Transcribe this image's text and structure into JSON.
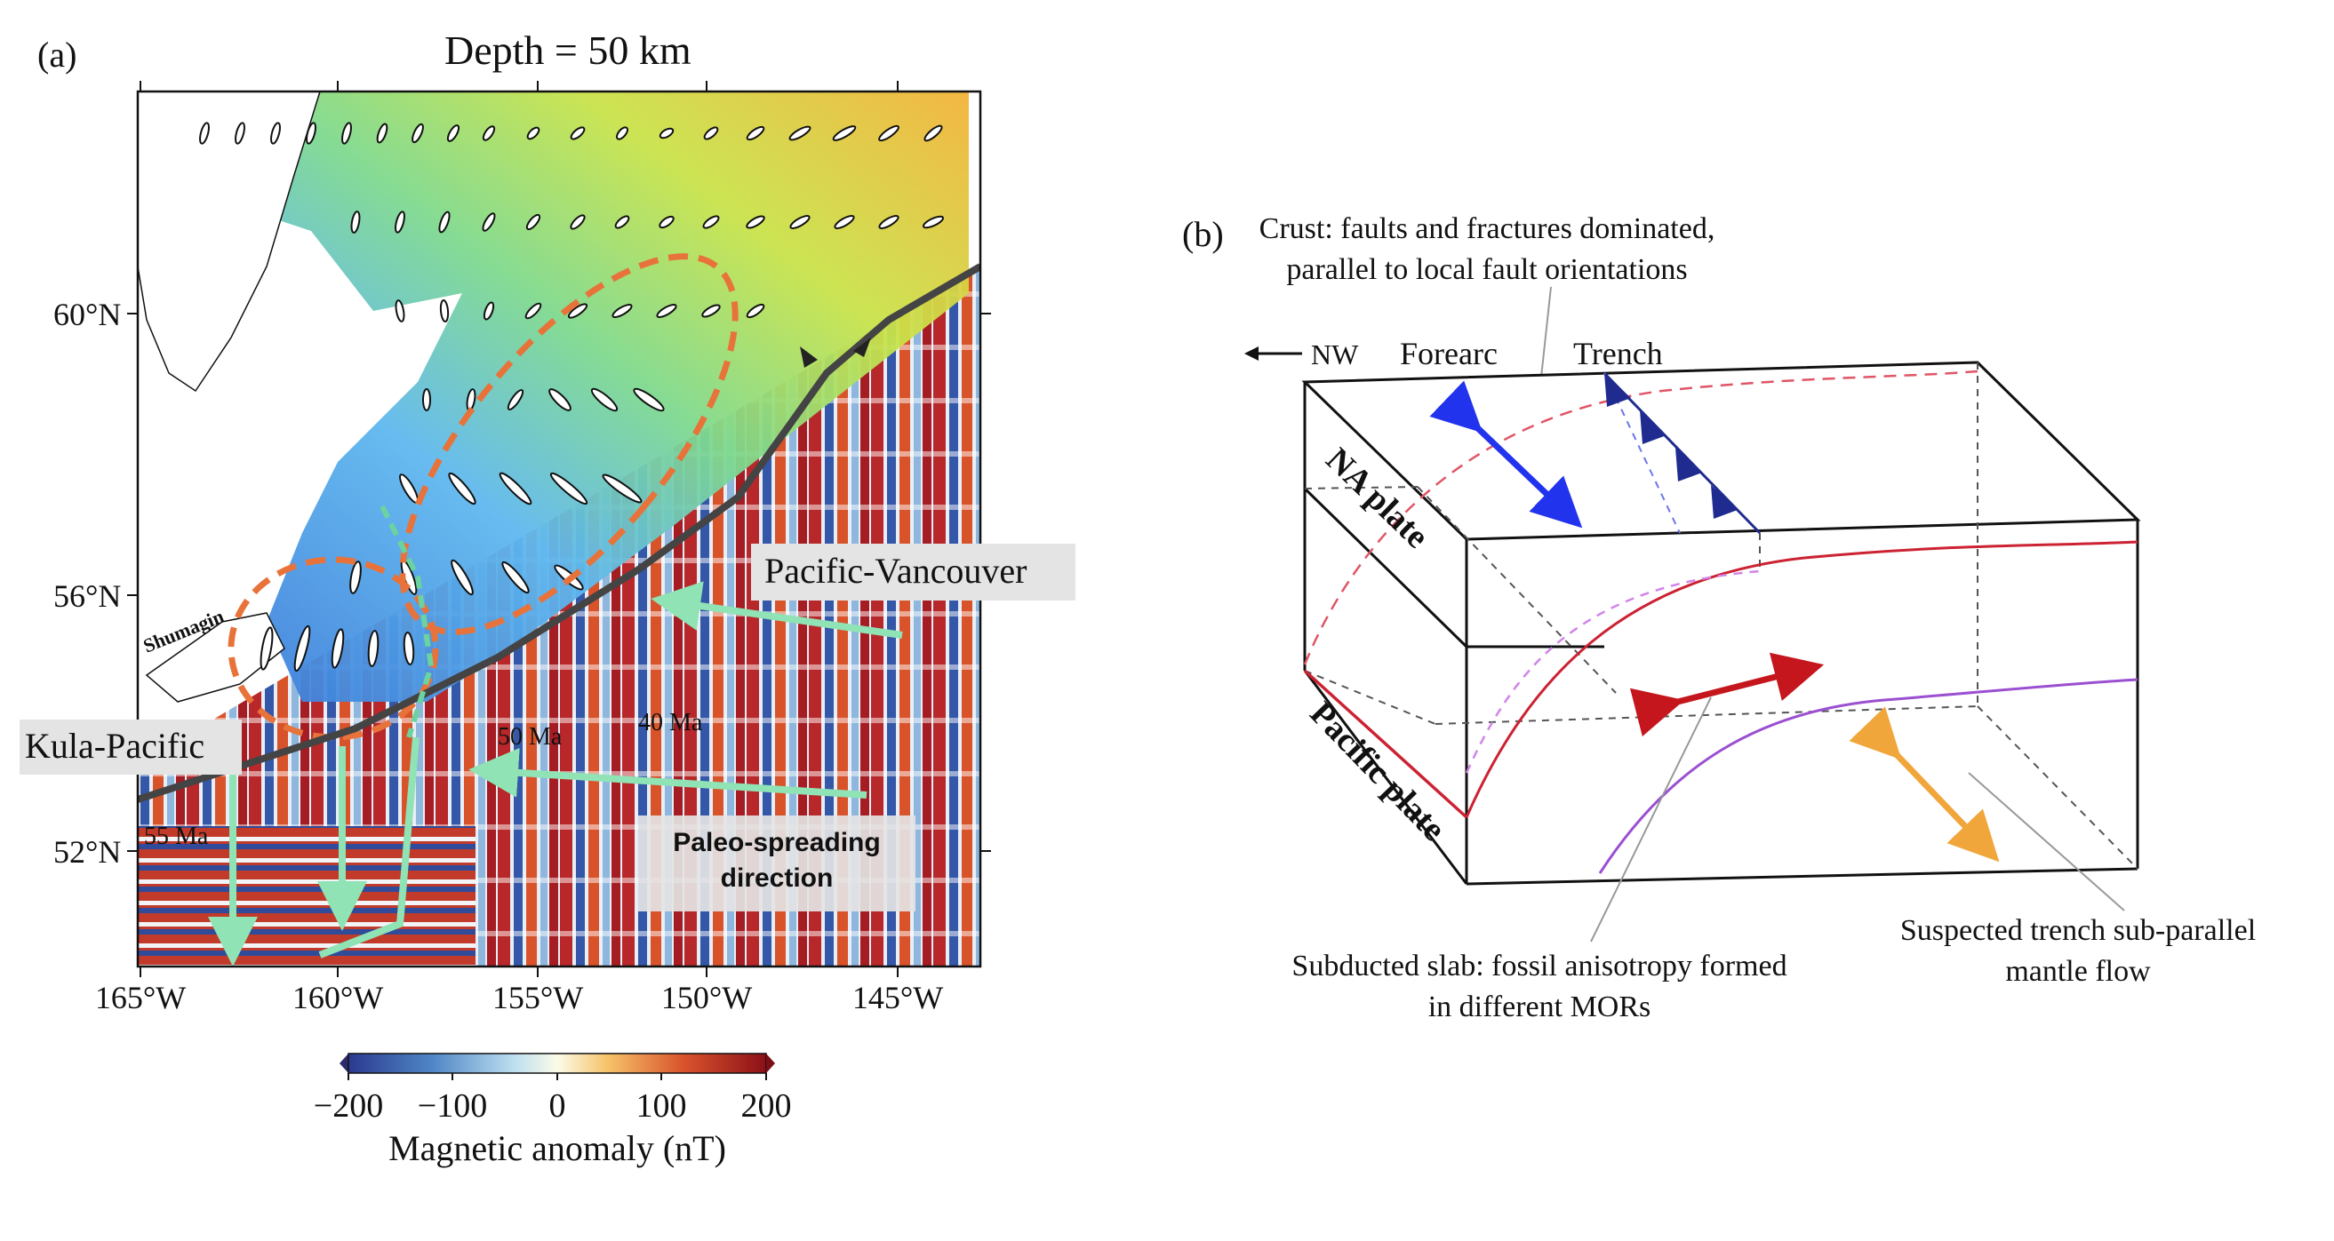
{
  "panel_a": {
    "label": "(a)",
    "title": "Depth = 50 km",
    "lat_ticks": [
      "60°N",
      "56°N",
      "52°N"
    ],
    "lon_ticks": [
      "165°W",
      "160°W",
      "155°W",
      "150°W",
      "145°W"
    ],
    "annotations": {
      "shumagin": "Shumagin",
      "pacific_vancouver": "Pacific-Vancouver",
      "kula_pacific": "Kula-Pacific",
      "age_50": "50 Ma",
      "age_40": "40 Ma",
      "age_55": "55 Ma",
      "paleo_line1": "Paleo-spreading",
      "paleo_line2": "direction"
    },
    "colorbar": {
      "ticks": [
        "−200",
        "−100",
        "0",
        "100",
        "200"
      ],
      "label": "Magnetic anomaly (nT)"
    },
    "colors": {
      "spreading_arrow": "#8fe3b4",
      "region_circle": "#e8733a",
      "trench": "#444444"
    }
  },
  "panel_b": {
    "label": "(b)",
    "crust_line1": "Crust: faults and fractures dominated,",
    "crust_line2": "parallel to local fault orientations",
    "nw": "NW",
    "forearc": "Forearc",
    "trench": "Trench",
    "na_plate": "NA plate",
    "pacific_plate": "Pacific plate",
    "slab_line1": "Subducted slab: fossil anisotropy formed",
    "slab_line2": "in different MORs",
    "mantle_line1": "Suspected trench sub-parallel",
    "mantle_line2": "mantle flow",
    "colors": {
      "crust_arrow": "#2233ee",
      "slab_arrow": "#c4161c",
      "mantle_arrow": "#f0a63a",
      "slab_line": "#cc2233",
      "mantle_line": "#9b4fd1"
    }
  }
}
